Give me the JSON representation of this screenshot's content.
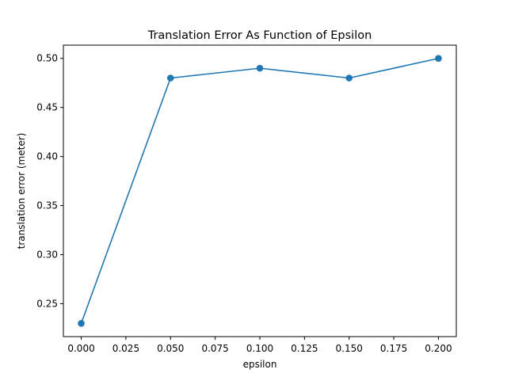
{
  "chart_data": {
    "type": "line",
    "title": "Translation Error As Function of Epsilon",
    "xlabel": "epsilon",
    "ylabel": "translation error (meter)",
    "xlim": [
      -0.01,
      0.21
    ],
    "ylim": [
      0.2165,
      0.5135
    ],
    "x_ticks": [
      0.0,
      0.025,
      0.05,
      0.075,
      0.1,
      0.125,
      0.15,
      0.175,
      0.2
    ],
    "x_tick_labels": [
      "0.000",
      "0.025",
      "0.050",
      "0.075",
      "0.100",
      "0.125",
      "0.150",
      "0.175",
      "0.200"
    ],
    "y_ticks": [
      0.25,
      0.3,
      0.35,
      0.4,
      0.45,
      0.5
    ],
    "y_tick_labels": [
      "0.25",
      "0.30",
      "0.35",
      "0.40",
      "0.45",
      "0.50"
    ],
    "grid": false,
    "legend": "none",
    "series": [
      {
        "x": [
          0.0,
          0.05,
          0.1,
          0.15,
          0.2
        ],
        "y": [
          0.23,
          0.48,
          0.49,
          0.48,
          0.5
        ],
        "color": "#1f77b4",
        "marker": "circle"
      }
    ]
  }
}
